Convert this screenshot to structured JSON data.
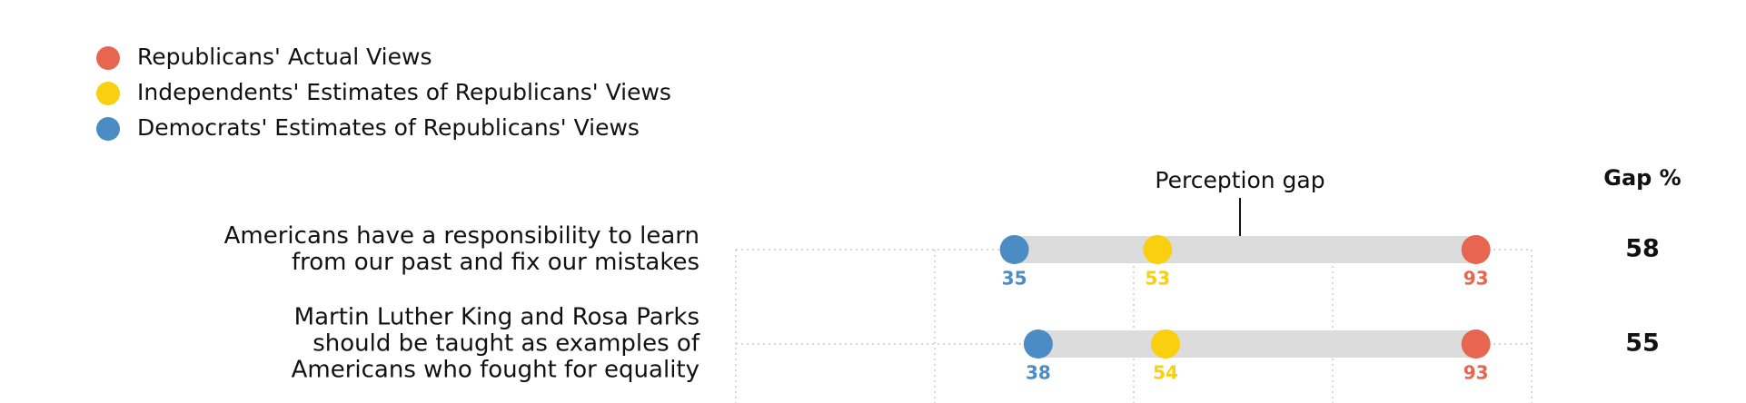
{
  "chart_data": {
    "type": "dot",
    "categories": [
      "Americans have a responsibility to learn\nfrom our past and fix our mistakes",
      "Martin Luther King and Rosa Parks\nshould be taught as examples of\nAmericans who fought for equality"
    ],
    "series": [
      {
        "name": "Republicans' Actual Views",
        "color": "#e8664f",
        "values": [
          93,
          93
        ]
      },
      {
        "name": "Independents' Estimates of Republicans' Views",
        "color": "#f9cf10",
        "values": [
          53,
          54
        ]
      },
      {
        "name": "Democrats' Estimates of Republicans' Views",
        "color": "#4c8cc4",
        "values": [
          35,
          38
        ]
      }
    ],
    "xlim": [
      0,
      100
    ],
    "xticks": [
      0,
      25,
      50,
      75,
      100
    ],
    "annotation": "Perception gap",
    "gap": {
      "header": "Gap %",
      "values": [
        58,
        55
      ]
    }
  }
}
